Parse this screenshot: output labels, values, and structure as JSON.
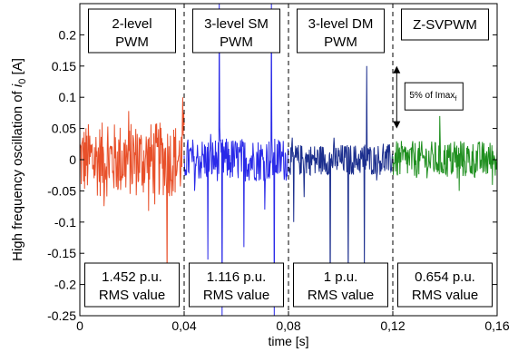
{
  "chart_data": {
    "type": "line",
    "xlabel": "time [s]",
    "ylabel_main": "High frequency oscillation of ",
    "ylabel_var": "i",
    "ylabel_sub": "0",
    "ylabel_unit": " [A]",
    "xlim": [
      0,
      0.16
    ],
    "ylim": [
      -0.25,
      0.25
    ],
    "xticks": [
      {
        "value": 0,
        "label": "0"
      },
      {
        "value": 0.04,
        "label": "0,04"
      },
      {
        "value": 0.08,
        "label": "0,08"
      },
      {
        "value": 0.12,
        "label": "0,12"
      },
      {
        "value": 0.16,
        "label": "0,16"
      }
    ],
    "yticks": [
      {
        "value": 0.2,
        "label": "0.2"
      },
      {
        "value": 0.15,
        "label": "0.15"
      },
      {
        "value": 0.1,
        "label": "0.1"
      },
      {
        "value": 0.05,
        "label": "0.05"
      },
      {
        "value": 0,
        "label": "0"
      },
      {
        "value": -0.05,
        "label": "-0.05"
      },
      {
        "value": -0.1,
        "label": "-0.1"
      },
      {
        "value": -0.15,
        "label": "-0.15"
      },
      {
        "value": -0.2,
        "label": "-0.2"
      },
      {
        "value": -0.25,
        "label": "-0.25"
      }
    ],
    "dividers": [
      0.04,
      0.08,
      0.12
    ],
    "sections": [
      {
        "title_line1": "2-level",
        "title_line2": "PWM",
        "rms_value": "1.452 p.u.",
        "rms_label": "RMS value",
        "x_start": 0,
        "x_end": 0.04
      },
      {
        "title_line1": "3-level SM",
        "title_line2": "PWM",
        "rms_value": "1.116 p.u.",
        "rms_label": "RMS value",
        "x_start": 0.04,
        "x_end": 0.08
      },
      {
        "title_line1": "3-level DM",
        "title_line2": "PWM",
        "rms_value": "1 p.u.",
        "rms_label": "RMS value",
        "x_start": 0.08,
        "x_end": 0.12
      },
      {
        "title_line1": "Z-SVPWM",
        "title_line2": "",
        "rms_value": "0.654 p.u.",
        "rms_label": "RMS value",
        "x_start": 0.12,
        "x_end": 0.16
      }
    ],
    "series": [
      {
        "color": "#e8502a",
        "x_start": 0,
        "x_end": 0.04,
        "amplitude": 0.06,
        "spikes": [
          {
            "x": 0.0395,
            "y": 0.1
          },
          {
            "x": 0.0334,
            "y": -0.2
          }
        ]
      },
      {
        "color": "#2a2ae8",
        "x_start": 0.04,
        "x_end": 0.08,
        "amplitude": 0.035,
        "spikes": [
          {
            "x": 0.0535,
            "y": 0.25
          },
          {
            "x": 0.0545,
            "y": -0.25
          },
          {
            "x": 0.0735,
            "y": 0.25
          },
          {
            "x": 0.0745,
            "y": -0.25
          },
          {
            "x": 0.049,
            "y": -0.16
          },
          {
            "x": 0.063,
            "y": -0.14
          },
          {
            "x": 0.071,
            "y": -0.08
          },
          {
            "x": 0.044,
            "y": -0.05
          }
        ]
      },
      {
        "color": "#1c2f8e",
        "x_start": 0.08,
        "x_end": 0.12,
        "amplitude": 0.025,
        "spikes": [
          {
            "x": 0.11,
            "y": 0.15
          },
          {
            "x": 0.096,
            "y": -0.23
          },
          {
            "x": 0.103,
            "y": -0.2
          },
          {
            "x": 0.109,
            "y": -0.18
          },
          {
            "x": 0.082,
            "y": -0.1
          },
          {
            "x": 0.086,
            "y": -0.06
          }
        ]
      },
      {
        "color": "#1f8f1f",
        "x_start": 0.12,
        "x_end": 0.16,
        "amplitude": 0.03,
        "spikes": [
          {
            "x": 0.138,
            "y": 0.07
          },
          {
            "x": 0.1455,
            "y": -0.05
          }
        ]
      }
    ],
    "annotation": {
      "text_main": "5% of Imax",
      "text_sub": "f",
      "x": 0.1215,
      "y_top": 0.15,
      "y_bottom": 0.05
    },
    "grid": false
  }
}
